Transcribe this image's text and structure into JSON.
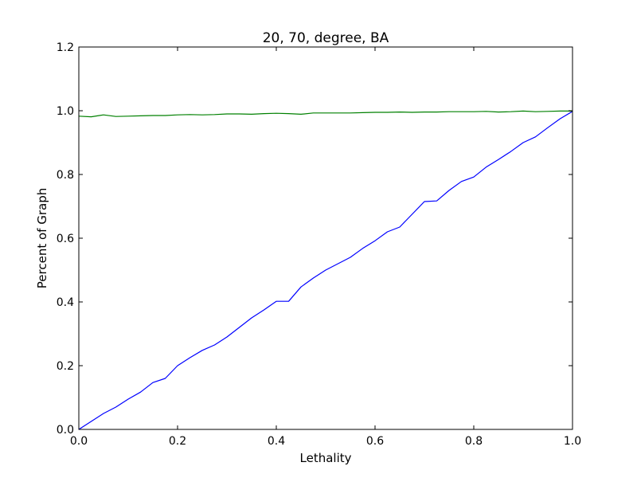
{
  "chart_data": {
    "type": "line",
    "title": "20, 70, degree, BA",
    "xlabel": "Lethality",
    "ylabel": "Percent of Graph",
    "xlim": [
      0.0,
      1.0
    ],
    "ylim": [
      0.0,
      1.2
    ],
    "xticks": [
      "0.0",
      "0.2",
      "0.4",
      "0.6",
      "0.8",
      "1.0"
    ],
    "yticks": [
      "0.0",
      "0.2",
      "0.4",
      "0.6",
      "0.8",
      "1.0",
      "1.2"
    ],
    "grid": false,
    "x": [
      0.0,
      0.025,
      0.05,
      0.075,
      0.1,
      0.125,
      0.15,
      0.175,
      0.2,
      0.225,
      0.25,
      0.275,
      0.3,
      0.325,
      0.35,
      0.375,
      0.4,
      0.425,
      0.45,
      0.475,
      0.5,
      0.525,
      0.55,
      0.575,
      0.6,
      0.625,
      0.65,
      0.675,
      0.7,
      0.725,
      0.75,
      0.775,
      0.8,
      0.825,
      0.85,
      0.875,
      0.9,
      0.925,
      0.95,
      0.975,
      1.0
    ],
    "series": [
      {
        "color": "#0000ff",
        "values": [
          0.0,
          0.025,
          0.05,
          0.07,
          0.095,
          0.117,
          0.147,
          0.16,
          0.2,
          0.225,
          0.248,
          0.265,
          0.29,
          0.32,
          0.35,
          0.375,
          0.402,
          0.402,
          0.447,
          0.475,
          0.5,
          0.52,
          0.54,
          0.568,
          0.592,
          0.62,
          0.635,
          0.675,
          0.715,
          0.717,
          0.75,
          0.778,
          0.792,
          0.823,
          0.847,
          0.872,
          0.9,
          0.918,
          0.947,
          0.975,
          0.998
        ]
      },
      {
        "color": "#008000",
        "values": [
          0.983,
          0.981,
          0.987,
          0.982,
          0.983,
          0.984,
          0.985,
          0.985,
          0.987,
          0.988,
          0.987,
          0.988,
          0.99,
          0.99,
          0.989,
          0.991,
          0.992,
          0.991,
          0.989,
          0.993,
          0.993,
          0.993,
          0.993,
          0.994,
          0.995,
          0.995,
          0.996,
          0.995,
          0.996,
          0.996,
          0.997,
          0.997,
          0.997,
          0.998,
          0.996,
          0.997,
          0.999,
          0.997,
          0.998,
          0.999,
          0.999
        ]
      }
    ]
  }
}
